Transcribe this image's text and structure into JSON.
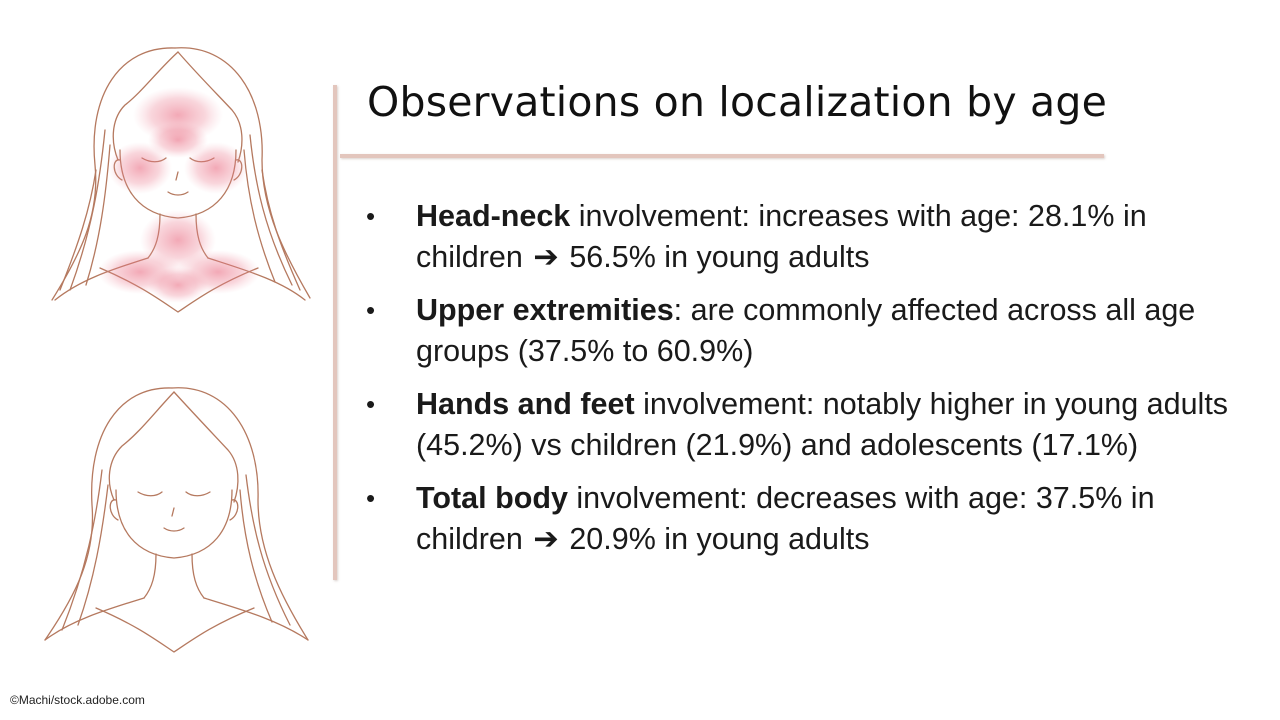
{
  "slide": {
    "title": "Observations on localization by age",
    "bullets": [
      {
        "bold": "Head-neck",
        "text_before_arrow": " involvement: increases with age: 28.1% in children ",
        "arrow": "➔",
        "text_after_arrow": " 56.5% in young adults"
      },
      {
        "bold": "Upper extremities",
        "text": ": are commonly affected across all age groups (37.5% to 60.9%)"
      },
      {
        "bold": "Hands and feet",
        "text": " involvement: notably higher in young adults (45.2%) vs children (21.9%) and adolescents (17.1%)"
      },
      {
        "bold": "Total body",
        "text_before_arrow": " involvement: decreases with age: 37.5% in children ",
        "arrow": "➔",
        "text_after_arrow": " 20.9% in young adults"
      }
    ],
    "bullet_symbol": "•",
    "credit": "©Machi/stock.adobe.com"
  },
  "illustrations": [
    {
      "name": "woman-face-with-rash-icon"
    },
    {
      "name": "woman-face-clear-icon"
    }
  ],
  "colors": {
    "accent_rule": "#e3c6bd",
    "sketch_line": "#b5795f",
    "rash": "#e8627a",
    "text": "#1a1a1a"
  }
}
